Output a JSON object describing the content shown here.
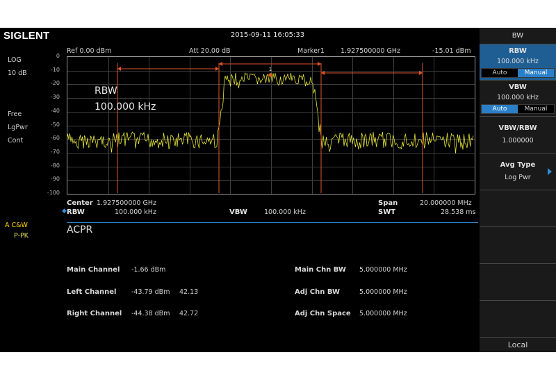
{
  "header": {
    "brand": "SIGLENT",
    "datetime": "2015-09-11   16:05:33"
  },
  "left_status": {
    "scale": "LOG",
    "scale_div": "10 dB",
    "trigger": "Free",
    "detector": "LgPwr",
    "sweep": "Cont",
    "trace_mode_label": "A C&W",
    "trace_mode_detect": "P-PK"
  },
  "top_info": {
    "ref": "Ref  0.00 dBm",
    "att": "Att  20.00 dB",
    "marker_label": "Marker1",
    "marker_freq": "1.927500000  GHz",
    "marker_level": "-15.01 dBm"
  },
  "y_ticks": [
    "0",
    "-10",
    "-20",
    "-30",
    "-40",
    "-50",
    "-60",
    "-70",
    "-80",
    "-90",
    "-100"
  ],
  "overlay": {
    "rbw_label": "RBW",
    "rbw_value": "100.000  kHz"
  },
  "marker_number": "1",
  "bottom_info": {
    "center_label": "Center",
    "center_value": "1.927500000  GHz",
    "span_label": "Span",
    "span_value": "20.000000  MHz",
    "rbw_label": "RBW",
    "rbw_value": "100.000  kHz",
    "vbw_label": "VBW",
    "vbw_value": "100.000  kHz",
    "swt_label": "SWT",
    "swt_value": "28.538 ms"
  },
  "acpr": {
    "title": "ACPR",
    "rows_left": [
      {
        "label": "Main Channel",
        "value": "-1.66 dBm",
        "extra": ""
      },
      {
        "label": "Left Channel",
        "value": "-43.79 dBm",
        "extra": "42.13"
      },
      {
        "label": "Right Channel",
        "value": "-44.38 dBm",
        "extra": "42.72"
      }
    ],
    "rows_right": [
      {
        "label": "Main Chn BW",
        "value": "5.000000  MHz"
      },
      {
        "label": "Adj Chn BW",
        "value": "5.000000  MHz"
      },
      {
        "label": "Adj Chn Space",
        "value": "5.000000  MHz"
      }
    ]
  },
  "softkeys": {
    "menu_title": "BW",
    "rbw": {
      "title": "RBW",
      "value": "100.000  kHz",
      "opt_auto": "Auto",
      "opt_manual": "Manual",
      "selected": "Manual"
    },
    "vbw": {
      "title": "VBW",
      "value": "100.000  kHz",
      "opt_auto": "Auto",
      "opt_manual": "Manual",
      "selected": "Auto"
    },
    "vbw_rbw": {
      "title": "VBW/RBW",
      "value": "1.000000"
    },
    "avg_type": {
      "title": "Avg Type",
      "value": "Log Pwr",
      "arrow_icon": "triangle-right-icon"
    },
    "local": "Local"
  },
  "colors": {
    "trace": "#e4e43a",
    "marker_lines": "#e0562a",
    "accent": "#2f8fdc",
    "selected": "#1f5e93"
  }
}
